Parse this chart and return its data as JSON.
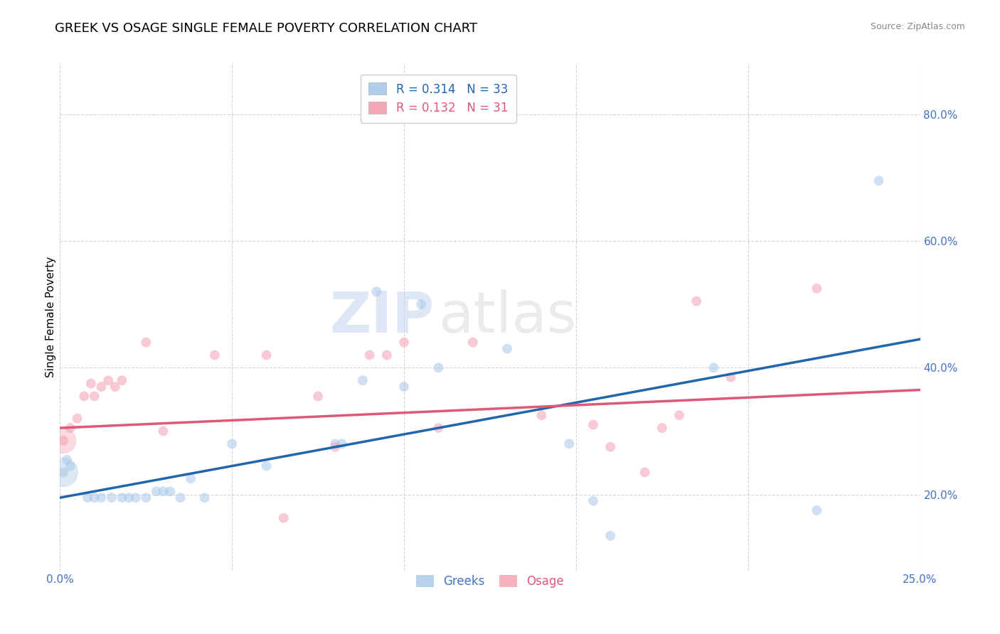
{
  "title": "GREEK VS OSAGE SINGLE FEMALE POVERTY CORRELATION CHART",
  "source": "Source: ZipAtlas.com",
  "ylabel_label": "Single Female Poverty",
  "xlim": [
    0.0,
    0.25
  ],
  "ylim": [
    0.08,
    0.88
  ],
  "xtick_vals": [
    0.0,
    0.05,
    0.1,
    0.15,
    0.2,
    0.25
  ],
  "xtick_labels": [
    "0.0%",
    "",
    "",
    "",
    "",
    "25.0%"
  ],
  "ytick_vals": [
    0.2,
    0.4,
    0.6,
    0.8
  ],
  "ytick_labels": [
    "20.0%",
    "40.0%",
    "60.0%",
    "80.0%"
  ],
  "legend_r_blue": "R = 0.314",
  "legend_n_blue": "N = 33",
  "legend_r_pink": "R = 0.132",
  "legend_n_pink": "N = 31",
  "blue_color": "#a8c8e8",
  "pink_color": "#f4a0b0",
  "blue_line_color": "#2166ac",
  "pink_line_color": "#e05878",
  "axis_color": "#4472c4",
  "watermark_zip": "ZIP",
  "watermark_atlas": "atlas",
  "greeks_scatter_x": [
    0.001,
    0.002,
    0.003,
    0.008,
    0.01,
    0.012,
    0.015,
    0.018,
    0.02,
    0.022,
    0.025,
    0.028,
    0.03,
    0.032,
    0.035,
    0.038,
    0.042,
    0.05,
    0.06,
    0.08,
    0.082,
    0.088,
    0.092,
    0.1,
    0.105,
    0.11,
    0.13,
    0.148,
    0.155,
    0.16,
    0.19,
    0.22,
    0.238
  ],
  "greeks_scatter_y": [
    0.235,
    0.255,
    0.245,
    0.195,
    0.195,
    0.195,
    0.195,
    0.195,
    0.195,
    0.195,
    0.195,
    0.205,
    0.205,
    0.205,
    0.195,
    0.225,
    0.195,
    0.28,
    0.245,
    0.28,
    0.28,
    0.38,
    0.52,
    0.37,
    0.5,
    0.4,
    0.43,
    0.28,
    0.19,
    0.135,
    0.4,
    0.175,
    0.695
  ],
  "osage_scatter_x": [
    0.001,
    0.003,
    0.005,
    0.007,
    0.009,
    0.01,
    0.012,
    0.014,
    0.016,
    0.018,
    0.025,
    0.03,
    0.045,
    0.06,
    0.065,
    0.075,
    0.08,
    0.09,
    0.095,
    0.1,
    0.11,
    0.12,
    0.14,
    0.155,
    0.16,
    0.17,
    0.175,
    0.18,
    0.185,
    0.195,
    0.22
  ],
  "osage_scatter_y": [
    0.285,
    0.305,
    0.32,
    0.355,
    0.375,
    0.355,
    0.37,
    0.38,
    0.37,
    0.38,
    0.44,
    0.3,
    0.42,
    0.42,
    0.163,
    0.355,
    0.275,
    0.42,
    0.42,
    0.44,
    0.305,
    0.44,
    0.325,
    0.31,
    0.275,
    0.235,
    0.305,
    0.325,
    0.505,
    0.385,
    0.525
  ],
  "blue_line_x": [
    0.0,
    0.25
  ],
  "blue_line_y": [
    0.195,
    0.445
  ],
  "pink_line_x": [
    0.0,
    0.25
  ],
  "pink_line_y": [
    0.305,
    0.365
  ],
  "background_color": "#ffffff",
  "grid_color": "#d0d0d0",
  "title_fontsize": 13,
  "axis_label_fontsize": 11,
  "tick_fontsize": 11,
  "scatter_size": 100,
  "scatter_alpha": 0.55,
  "large_blue_x": [
    0.001
  ],
  "large_blue_y": [
    0.235
  ],
  "large_pink_x": [
    0.001
  ],
  "large_pink_y": [
    0.285
  ]
}
